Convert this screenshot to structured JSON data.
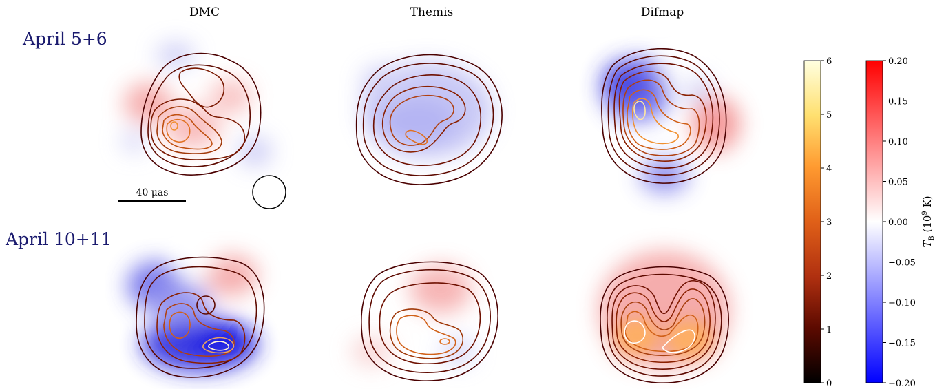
{
  "columns": [
    "DMC",
    "Themis",
    "Difmap"
  ],
  "rows": [
    "April 5+6",
    "April 10+11"
  ],
  "scalebar": {
    "label": "40 μas"
  },
  "colorbar_intensity": {
    "ticks": [
      "0",
      "1",
      "2",
      "3",
      "4",
      "5",
      "6"
    ],
    "colormap": [
      "#000000",
      "#5c0a00",
      "#b03010",
      "#e06018",
      "#ff9a30",
      "#ffe070",
      "#ffffe0"
    ]
  },
  "colorbar_tb": {
    "label_main": "T",
    "label_sub": "B",
    "label_rest": " (10",
    "label_exp": "9",
    "label_end": " K)",
    "ticks": [
      "0.20",
      "0.15",
      "0.10",
      "0.05",
      "0.00",
      "−0.05",
      "−0.10",
      "−0.15",
      "−0.20"
    ],
    "colormap": [
      "#ff0000",
      "#ffffff",
      "#0000ff"
    ]
  },
  "colors": {
    "label_blue": "#1a1a6e",
    "positive": "#ff0000",
    "negative": "#0000ff"
  }
}
